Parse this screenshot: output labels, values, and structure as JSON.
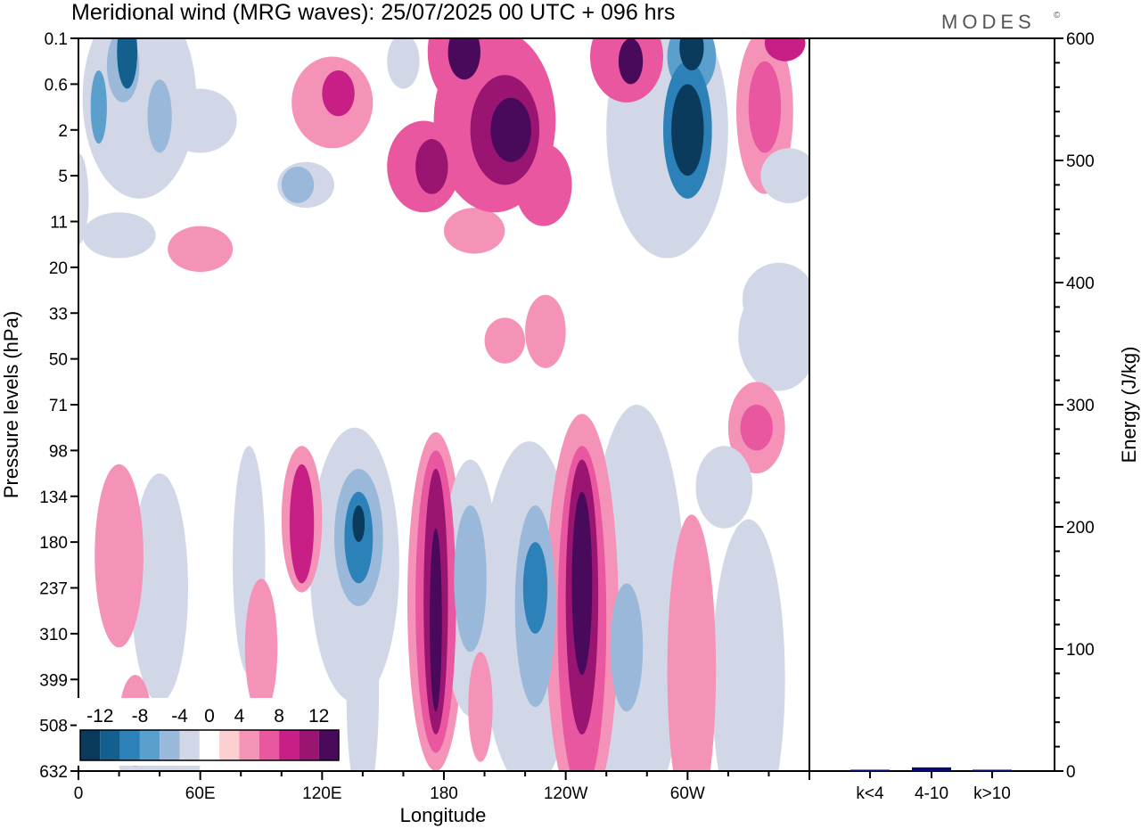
{
  "chart_data": {
    "type": "heatmap",
    "title": "Meridional wind (MRG waves):  25/07/2025  00 UTC  + 096 hrs",
    "logo_text": "MODES",
    "logo_mark": "©",
    "xlabel": "Longitude",
    "ylabel": "Pressure levels (hPa)",
    "x_ticks": [
      "0",
      "60E",
      "120E",
      "180",
      "120W",
      "60W"
    ],
    "x_tick_degrees": [
      0,
      60,
      120,
      180,
      240,
      300
    ],
    "x_range": [
      0,
      360
    ],
    "y_ticks": [
      "0.1",
      "0.6",
      "2",
      "5",
      "11",
      "20",
      "33",
      "50",
      "71",
      "98",
      "134",
      "180",
      "237",
      "310",
      "399",
      "508",
      "632"
    ],
    "colorbar": {
      "labels": [
        "-12",
        "-8",
        "-4",
        "0",
        "4",
        "8",
        "12"
      ],
      "levels": [
        -14,
        -12,
        -10,
        -8,
        -6,
        -4,
        -2,
        2,
        4,
        6,
        8,
        10,
        12,
        14
      ],
      "colors": [
        "#0a3b5c",
        "#135f8d",
        "#2c82b8",
        "#5b9fcd",
        "#9ab9da",
        "#d2d7e8",
        "#ffffff",
        "#fbcfcf",
        "#f592b8",
        "#e8579f",
        "#c81f86",
        "#991571",
        "#4a0a5c"
      ]
    },
    "contours": [
      {
        "v": -12,
        "lon": 24,
        "lev": 0.3,
        "w": 5,
        "h": 0.8
      },
      {
        "v": -8,
        "lon": 10,
        "lev": 1.5,
        "w": 4,
        "h": 0.8
      },
      {
        "v": -6,
        "lon": 40,
        "lev": 1.7,
        "w": 6,
        "h": 0.8
      },
      {
        "v": -6,
        "lon": 22,
        "lev": 0.6,
        "w": 8,
        "h": 0.8
      },
      {
        "v": -4,
        "lon": 30,
        "lev": 1.3,
        "w": 28,
        "h": 2.2
      },
      {
        "v": -4,
        "lon": 60,
        "lev": 1.8,
        "w": 18,
        "h": 0.7
      },
      {
        "v": -4,
        "lon": 0,
        "lev": 3.5,
        "w": 5,
        "h": 1.0
      },
      {
        "v": -4,
        "lon": 112,
        "lev": 3.2,
        "w": 14,
        "h": 0.5
      },
      {
        "v": -6,
        "lon": 108,
        "lev": 3.2,
        "w": 8,
        "h": 0.4
      },
      {
        "v": -4,
        "lon": 20,
        "lev": 4.3,
        "w": 18,
        "h": 0.5
      },
      {
        "v": -4,
        "lon": 160,
        "lev": 0.5,
        "w": 8,
        "h": 0.6
      },
      {
        "v": -14,
        "lon": 302,
        "lev": 0.2,
        "w": 6,
        "h": 0.5
      },
      {
        "v": -8,
        "lon": 302,
        "lev": 0.4,
        "w": 12,
        "h": 0.8
      },
      {
        "v": -14,
        "lon": 300,
        "lev": 2.0,
        "w": 8,
        "h": 1.0
      },
      {
        "v": -10,
        "lon": 300,
        "lev": 2.0,
        "w": 12,
        "h": 1.5
      },
      {
        "v": -4,
        "lon": 290,
        "lev": 2.0,
        "w": 30,
        "h": 2.8
      },
      {
        "v": -4,
        "lon": 350,
        "lev": 3.0,
        "w": 14,
        "h": 0.6
      },
      {
        "v": -4,
        "lon": 345,
        "lev": 6.5,
        "w": 20,
        "h": 1.2
      },
      {
        "v": 14,
        "lon": 213,
        "lev": 2.0,
        "w": 10,
        "h": 0.7
      },
      {
        "v": 10,
        "lon": 210,
        "lev": 2.0,
        "w": 17,
        "h": 1.2
      },
      {
        "v": 6,
        "lon": 205,
        "lev": 1.8,
        "w": 30,
        "h": 2.0
      },
      {
        "v": 10,
        "lon": 174,
        "lev": 2.8,
        "w": 8,
        "h": 0.6
      },
      {
        "v": 6,
        "lon": 170,
        "lev": 2.8,
        "w": 18,
        "h": 1.0
      },
      {
        "v": 6,
        "lon": 229,
        "lev": 3.2,
        "w": 14,
        "h": 0.9
      },
      {
        "v": 4,
        "lon": 195,
        "lev": 4.2,
        "w": 15,
        "h": 0.5
      },
      {
        "v": 8,
        "lon": 128,
        "lev": 1.2,
        "w": 8,
        "h": 0.5
      },
      {
        "v": 4,
        "lon": 125,
        "lev": 1.4,
        "w": 20,
        "h": 1.0
      },
      {
        "v": 12,
        "lon": 190,
        "lev": 0.3,
        "w": 8,
        "h": 0.6
      },
      {
        "v": 6,
        "lon": 190,
        "lev": 0.3,
        "w": 18,
        "h": 1.2
      },
      {
        "v": 12,
        "lon": 272,
        "lev": 0.5,
        "w": 6,
        "h": 0.5
      },
      {
        "v": 6,
        "lon": 270,
        "lev": 0.4,
        "w": 18,
        "h": 1.0
      },
      {
        "v": 8,
        "lon": 348,
        "lev": 0.1,
        "w": 10,
        "h": 0.4
      },
      {
        "v": 6,
        "lon": 338,
        "lev": 1.5,
        "w": 8,
        "h": 1.0
      },
      {
        "v": 4,
        "lon": 338,
        "lev": 1.6,
        "w": 14,
        "h": 1.8
      },
      {
        "v": 4,
        "lon": 60,
        "lev": 4.6,
        "w": 16,
        "h": 0.5
      },
      {
        "v": 4,
        "lon": 210,
        "lev": 6.6,
        "w": 10,
        "h": 0.5
      },
      {
        "v": -4,
        "lon": 40,
        "lev": 12.0,
        "w": 14,
        "h": 2.5
      },
      {
        "v": -4,
        "lon": 84,
        "lev": 11.4,
        "w": 8,
        "h": 2.5
      },
      {
        "v": -6,
        "lon": 138,
        "lev": 10.9,
        "w": 12,
        "h": 1.5
      },
      {
        "v": -10,
        "lon": 138,
        "lev": 10.9,
        "w": 7,
        "h": 1.0
      },
      {
        "v": -14,
        "lon": 138,
        "lev": 10.6,
        "w": 3,
        "h": 0.4
      },
      {
        "v": -4,
        "lon": 136,
        "lev": 11.5,
        "w": 22,
        "h": 3.0
      },
      {
        "v": -4,
        "lon": 140,
        "lev": 14.3,
        "w": 8,
        "h": 2.5
      },
      {
        "v": 14,
        "lon": 176,
        "lev": 12.7,
        "w": 3,
        "h": 2.0
      },
      {
        "v": 10,
        "lon": 176,
        "lev": 12.3,
        "w": 6,
        "h": 2.9
      },
      {
        "v": 6,
        "lon": 176,
        "lev": 12.3,
        "w": 10,
        "h": 3.3
      },
      {
        "v": 4,
        "lon": 176,
        "lev": 12.3,
        "w": 14,
        "h": 3.7
      },
      {
        "v": 8,
        "lon": 110,
        "lev": 10.6,
        "w": 6,
        "h": 1.3
      },
      {
        "v": 4,
        "lon": 110,
        "lev": 10.5,
        "w": 10,
        "h": 1.6
      },
      {
        "v": 4,
        "lon": 20,
        "lev": 11.3,
        "w": 12,
        "h": 2.0
      },
      {
        "v": 4,
        "lon": 28,
        "lev": 14.9,
        "w": 8,
        "h": 1.0
      },
      {
        "v": 4,
        "lon": 90,
        "lev": 13.3,
        "w": 8,
        "h": 1.5
      },
      {
        "v": 4,
        "lon": 198,
        "lev": 14.6,
        "w": 6,
        "h": 1.2
      },
      {
        "v": -6,
        "lon": 193,
        "lev": 11.8,
        "w": 8,
        "h": 1.6
      },
      {
        "v": -4,
        "lon": 193,
        "lev": 12.0,
        "w": 14,
        "h": 2.8
      },
      {
        "v": -10,
        "lon": 225,
        "lev": 12.0,
        "w": 6,
        "h": 1.0
      },
      {
        "v": -6,
        "lon": 225,
        "lev": 12.4,
        "w": 10,
        "h": 2.2
      },
      {
        "v": -4,
        "lon": 222,
        "lev": 12.6,
        "w": 24,
        "h": 3.8
      },
      {
        "v": 14,
        "lon": 248,
        "lev": 11.9,
        "w": 5,
        "h": 2.0
      },
      {
        "v": 10,
        "lon": 248,
        "lev": 12.2,
        "w": 8,
        "h": 3.0
      },
      {
        "v": 6,
        "lon": 248,
        "lev": 12.7,
        "w": 12,
        "h": 3.8
      },
      {
        "v": 4,
        "lon": 248,
        "lev": 12.6,
        "w": 18,
        "h": 4.4
      },
      {
        "v": -6,
        "lon": 270,
        "lev": 13.3,
        "w": 8,
        "h": 1.4
      },
      {
        "v": -4,
        "lon": 275,
        "lev": 12.5,
        "w": 24,
        "h": 4.5
      },
      {
        "v": 4,
        "lon": 302,
        "lev": 13.8,
        "w": 12,
        "h": 3.4
      },
      {
        "v": -4,
        "lon": 330,
        "lev": 14.0,
        "w": 18,
        "h": 3.5
      },
      {
        "v": -4,
        "lon": 318,
        "lev": 9.8,
        "w": 14,
        "h": 0.9
      },
      {
        "v": 6,
        "lon": 334,
        "lev": 8.5,
        "w": 8,
        "h": 0.5
      },
      {
        "v": 4,
        "lon": 334,
        "lev": 8.5,
        "w": 14,
        "h": 1.0
      },
      {
        "v": -4,
        "lon": 345,
        "lev": 5.7,
        "w": 18,
        "h": 0.8
      },
      {
        "v": -4,
        "lon": 40,
        "lev": 15.8,
        "w": 20,
        "h": 0.9
      },
      {
        "v": 4,
        "lon": 230,
        "lev": 6.4,
        "w": 10,
        "h": 0.8
      }
    ],
    "energy_axis": {
      "label": "Energy (J/kg)",
      "ticks": [
        "0",
        "100",
        "200",
        "300",
        "400",
        "500",
        "600"
      ],
      "range": [
        0,
        600
      ]
    },
    "energy_bars": {
      "categories": [
        "k<4",
        "4-10",
        "k>10"
      ],
      "values": [
        0.5,
        3,
        0.5
      ],
      "color": "#0a0a6e"
    }
  }
}
